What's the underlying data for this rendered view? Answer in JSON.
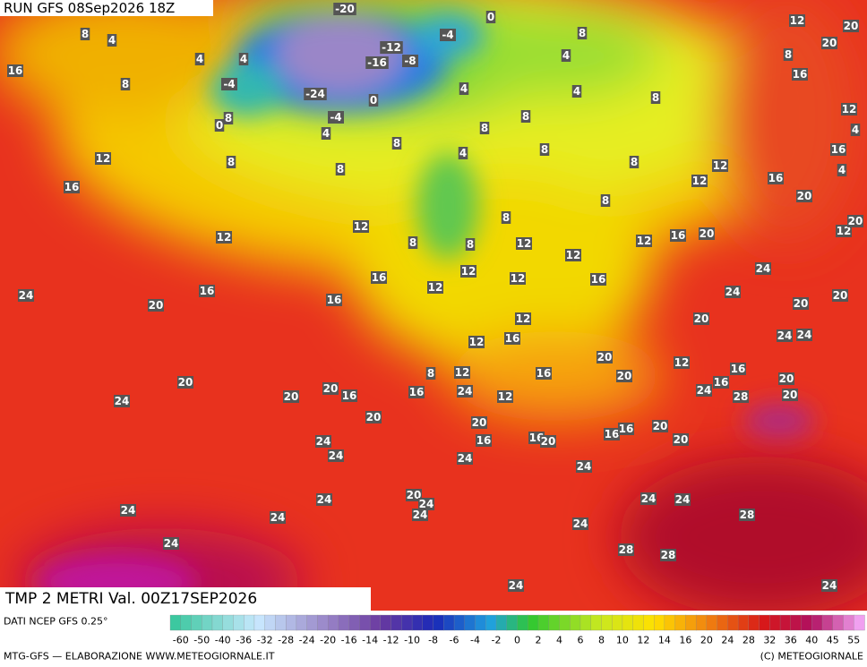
{
  "header": {
    "run": "RUN GFS 08Sep2026 18Z",
    "field": "TMP 2 METRI Val. 00Z17SEP2026"
  },
  "footer": {
    "source": "DATI NCEP GFS 0.25°",
    "credit": "MTG-GFS — ELABORAZIONE WWW.METEOGIORNALE.IT",
    "copyright": "(C) METEOGIORNALE"
  },
  "legend": {
    "ticks": [
      -60,
      -50,
      -40,
      -36,
      -32,
      -28,
      -24,
      -20,
      -16,
      -14,
      -12,
      -10,
      -8,
      -6,
      -4,
      -2,
      0,
      2,
      4,
      6,
      8,
      10,
      12,
      14,
      16,
      20,
      24,
      28,
      32,
      36,
      40,
      45,
      55
    ]
  },
  "map": {
    "labels": [
      8,
      4,
      4,
      4,
      -4,
      8,
      16,
      -20,
      0,
      -12,
      -16,
      -8,
      -4,
      8,
      4,
      4,
      4,
      8,
      -24,
      -4,
      0,
      8,
      0,
      4,
      8,
      12,
      20,
      20,
      8,
      16,
      12,
      4,
      16,
      4,
      12,
      8,
      8,
      8,
      8,
      4,
      8,
      8,
      12,
      16,
      12,
      16,
      8,
      20,
      12,
      12,
      8,
      8,
      8,
      12,
      12,
      16,
      20,
      12,
      20,
      12,
      12,
      24,
      16,
      16,
      12,
      24,
      16,
      20,
      16,
      12,
      24,
      20,
      20,
      12,
      20,
      12,
      16,
      24,
      24,
      20,
      20,
      12,
      8,
      12,
      16,
      16,
      20,
      20,
      16,
      16,
      24,
      12,
      24,
      16,
      28,
      20,
      20,
      24,
      20,
      20,
      20,
      16,
      16,
      20,
      16,
      16,
      20,
      20,
      24,
      24,
      24,
      24,
      20,
      24,
      24,
      24,
      24,
      24,
      24,
      24,
      24,
      28,
      24,
      28,
      28,
      24,
      24
    ]
  }
}
